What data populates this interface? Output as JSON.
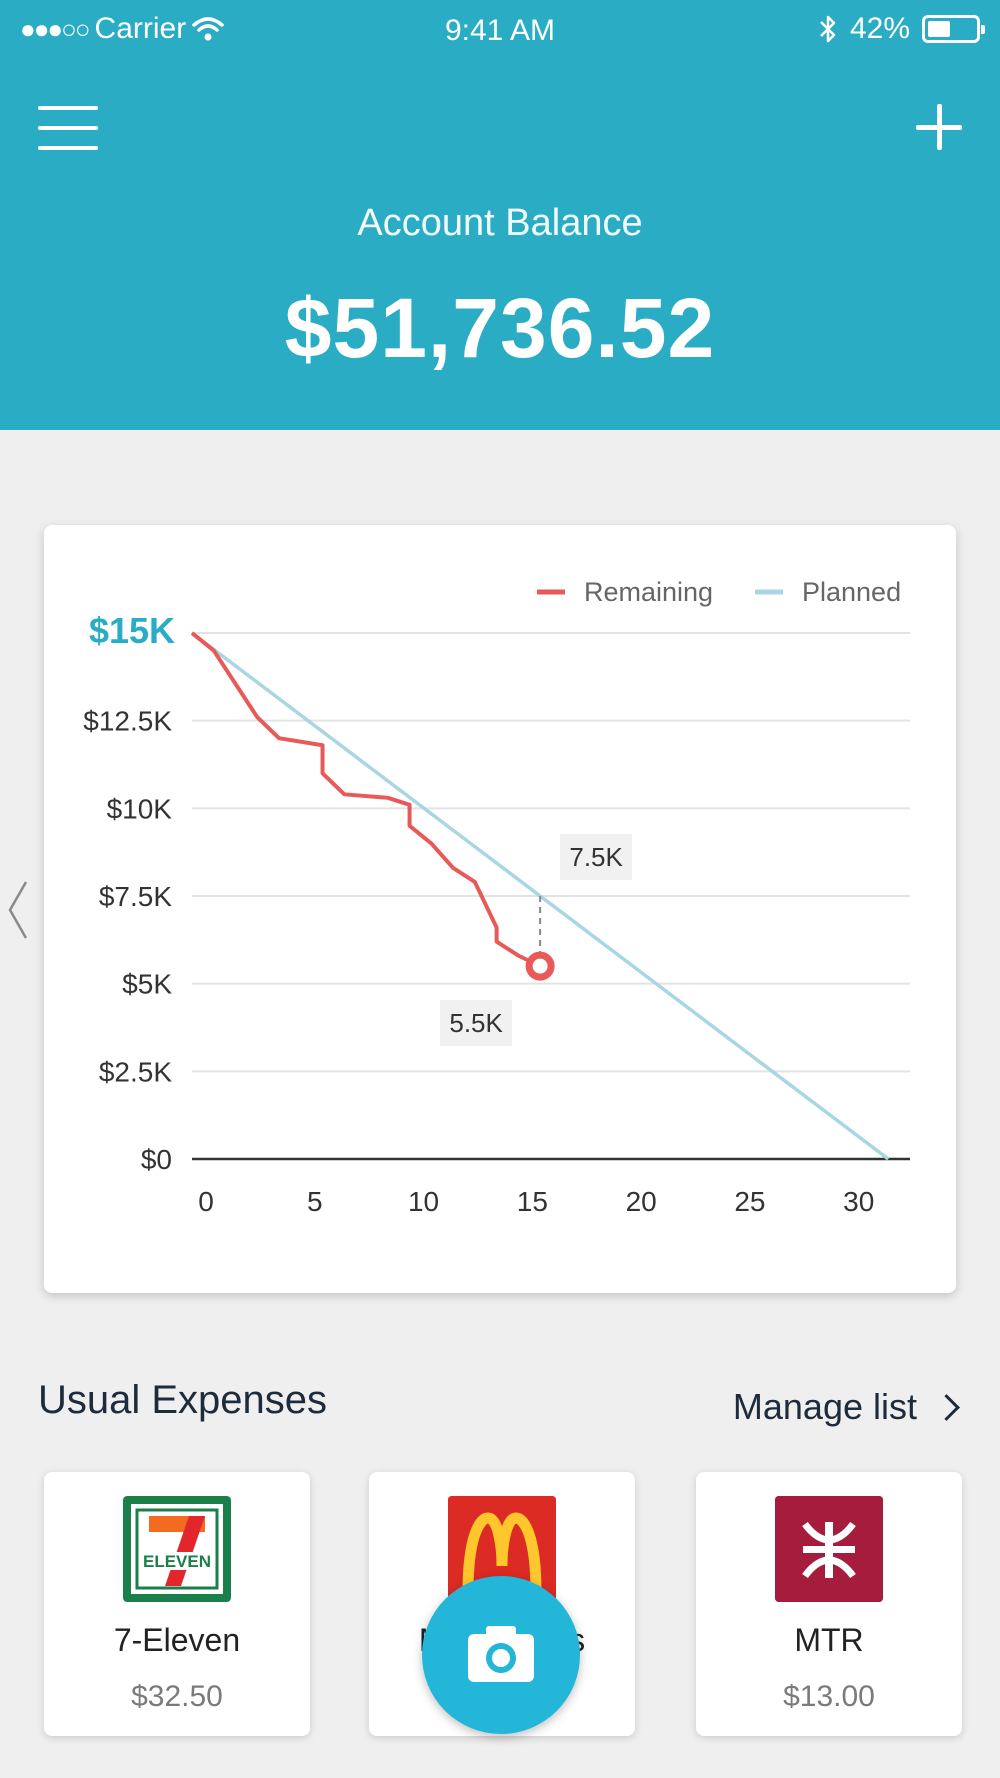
{
  "status_bar": {
    "signal": "●●●○○",
    "carrier": "Carrier",
    "time": "9:41 AM",
    "battery": "42%",
    "battery_level": 0.42
  },
  "header": {
    "balance_label": "Account Balance",
    "balance_value": "$51,736.52",
    "menu_icon": "hamburger-menu-icon",
    "add_icon": "plus-icon"
  },
  "chart_data": {
    "type": "line",
    "title": "",
    "legend_position": "top-right",
    "grid": true,
    "xlim": [
      0,
      33
    ],
    "ylim": [
      0,
      15000
    ],
    "x_ticks": [
      "0",
      "5",
      "10",
      "15",
      "20",
      "25",
      "30"
    ],
    "y_ticks": [
      "$0",
      "$2.5K",
      "$5K",
      "$7.5K",
      "$10K",
      "$12.5K",
      "$15K"
    ],
    "series": [
      {
        "name": "Remaining",
        "color": "#e85a5a",
        "x": [
          0,
          1,
          3,
          4,
          6,
          6,
          7,
          9,
          10,
          10,
          11,
          12,
          13,
          14,
          14,
          15,
          16
        ],
        "y": [
          15000,
          14500,
          12600,
          12000,
          11800,
          11000,
          10400,
          10300,
          10100,
          9500,
          9000,
          8300,
          7900,
          6600,
          6200,
          5800,
          5500
        ]
      },
      {
        "name": "Planned",
        "color": "#a9d6e2",
        "x": [
          0,
          32
        ],
        "y": [
          15000,
          0
        ]
      }
    ],
    "annotations": [
      {
        "x": 16,
        "y": 7500,
        "label": "7.5K"
      },
      {
        "x": 16,
        "y": 5500,
        "label": "5.5K"
      }
    ]
  },
  "expenses": {
    "title": "Usual Expenses",
    "manage_label": "Manage list",
    "items": [
      {
        "name": "7-Eleven",
        "amount": "$32.50",
        "logo_text": "ELEVEN",
        "logo_digit": "7"
      },
      {
        "name": "McDonald's",
        "amount": "",
        "logo_text": "M"
      },
      {
        "name": "MTR",
        "amount": "$13.00",
        "logo_color": "#a61c3c"
      }
    ]
  },
  "fab": {
    "icon": "camera-icon"
  }
}
